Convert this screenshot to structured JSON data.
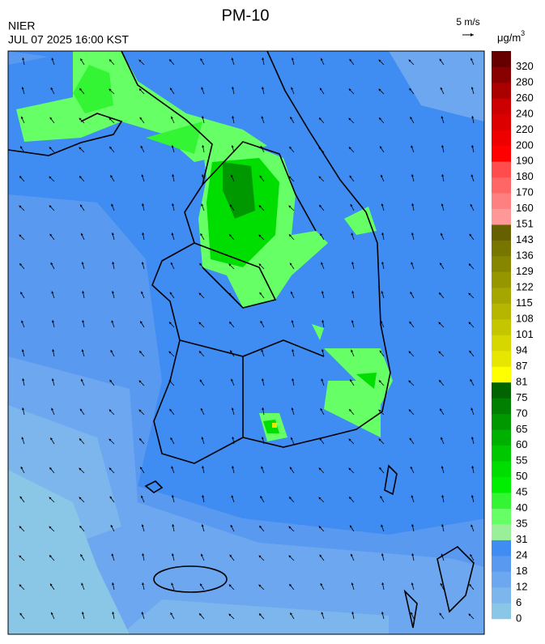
{
  "header": {
    "title": "PM-10",
    "source": "NIER",
    "datetime": "JUL 07 2025 16:00 KST",
    "wind_scale": "5 m/s",
    "unit": "μg/m",
    "unit_sup": "3"
  },
  "colorbar": {
    "levels": [
      0,
      6,
      12,
      18,
      24,
      31,
      35,
      40,
      45,
      50,
      55,
      60,
      65,
      70,
      75,
      81,
      87,
      94,
      101,
      108,
      115,
      122,
      129,
      136,
      143,
      151,
      160,
      170,
      180,
      190,
      200,
      220,
      240,
      260,
      280,
      320
    ],
    "colors": [
      "#8ac6e6",
      "#7cb6ec",
      "#6ca7ef",
      "#5a99f0",
      "#3f8cf2",
      "#99f099",
      "#66ff66",
      "#33f533",
      "#00ee00",
      "#00dd00",
      "#00c800",
      "#00b000",
      "#009800",
      "#007f00",
      "#006400",
      "#ffff00",
      "#e6e600",
      "#d6d600",
      "#c6c600",
      "#b6b600",
      "#a6a600",
      "#969600",
      "#868600",
      "#767600",
      "#666000",
      "#ff9999",
      "#ff8080",
      "#ff6666",
      "#ff4d4d",
      "#ff0000",
      "#ee0000",
      "#dd0000",
      "#cc0000",
      "#aa0000",
      "#880000",
      "#660000"
    ]
  }
}
